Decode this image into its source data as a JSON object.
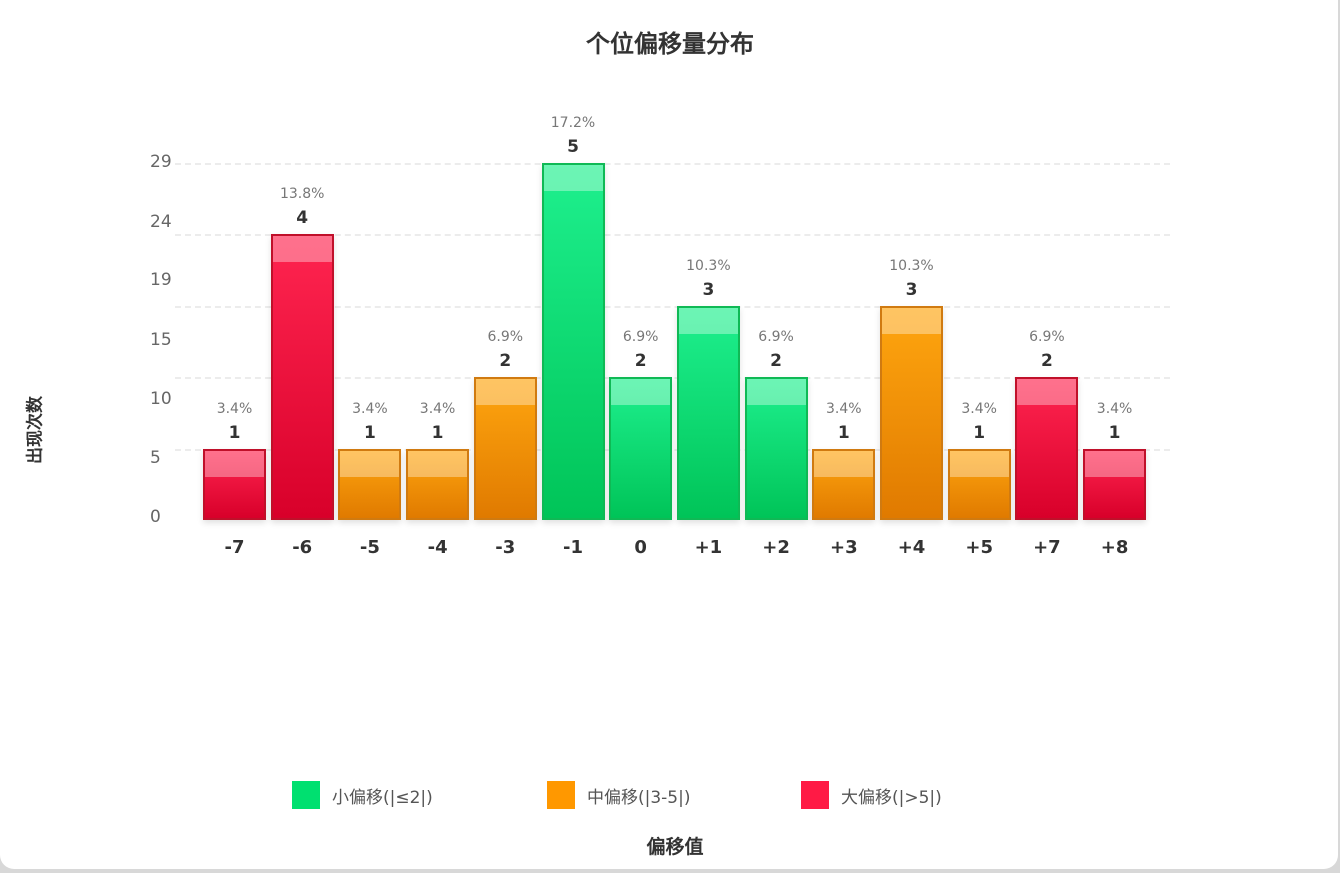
{
  "chart_data": {
    "type": "bar",
    "title": "个位偏移量分布",
    "xlabel": "偏移值",
    "ylabel": "出现次数",
    "categories": [
      "-7",
      "-6",
      "-5",
      "-4",
      "-3",
      "-1",
      "0",
      "+1",
      "+2",
      "+3",
      "+4",
      "+5",
      "+7",
      "+8"
    ],
    "values": [
      1,
      4,
      1,
      1,
      2,
      5,
      2,
      3,
      2,
      1,
      3,
      1,
      2,
      1
    ],
    "percentages": [
      "3.4%",
      "13.8%",
      "3.4%",
      "3.4%",
      "6.9%",
      "17.2%",
      "6.9%",
      "10.3%",
      "6.9%",
      "3.4%",
      "10.3%",
      "3.4%",
      "6.9%",
      "3.4%"
    ],
    "groups": [
      "large",
      "large",
      "mid",
      "mid",
      "mid",
      "small",
      "small",
      "small",
      "small",
      "mid",
      "mid",
      "mid",
      "large",
      "large"
    ],
    "ytick_labels": [
      "0",
      "5",
      "10",
      "15",
      "19",
      "24",
      "29"
    ],
    "ylim": [
      0,
      5
    ],
    "grid": true,
    "legend_position": "bottom",
    "legend": [
      {
        "key": "small",
        "label": "小偏移(|≤2|)",
        "color": "#00e070"
      },
      {
        "key": "mid",
        "label": "中偏移(|3-5|)",
        "color": "#ff9800"
      },
      {
        "key": "large",
        "label": "大偏移(|>5|)",
        "color": "#ff1a45"
      }
    ]
  }
}
